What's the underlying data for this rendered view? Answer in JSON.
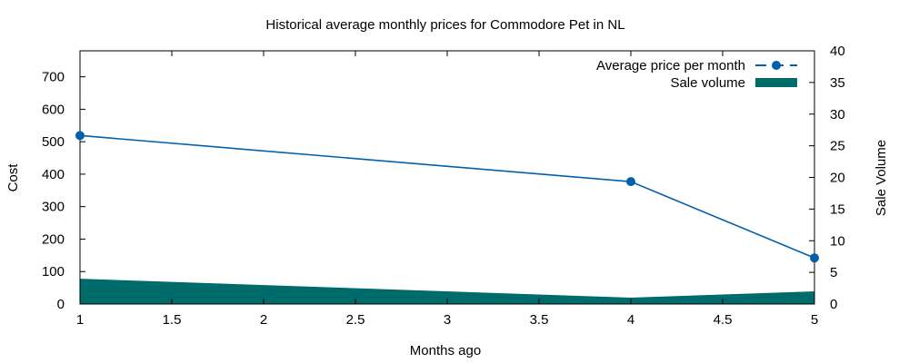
{
  "chart_data": {
    "type": "line",
    "title": "Historical average monthly prices for Commodore Pet in NL",
    "xlabel": "Months ago",
    "ylabel": "Cost",
    "y2label": "Sale Volume",
    "xlim": [
      1,
      5
    ],
    "ylim": [
      0,
      780
    ],
    "y2lim": [
      0,
      40
    ],
    "xticks": [
      "1",
      "1.5",
      "2",
      "2.5",
      "3",
      "3.5",
      "4",
      "4.5",
      "5"
    ],
    "yticks": [
      "0",
      "100",
      "200",
      "300",
      "400",
      "500",
      "600",
      "700"
    ],
    "y2ticks": [
      "0",
      "5",
      "10",
      "15",
      "20",
      "25",
      "30",
      "35",
      "40"
    ],
    "legend_position": "top-right",
    "series": [
      {
        "name": "Average price per month",
        "kind": "line",
        "axis": "left",
        "color": "#0060ad",
        "x": [
          1,
          4,
          5
        ],
        "values": [
          519,
          377,
          142
        ]
      },
      {
        "name": "Sale volume",
        "kind": "area",
        "axis": "right",
        "color": "#006b6b",
        "x": [
          1,
          4,
          5
        ],
        "values": [
          4,
          1,
          2
        ]
      }
    ]
  }
}
